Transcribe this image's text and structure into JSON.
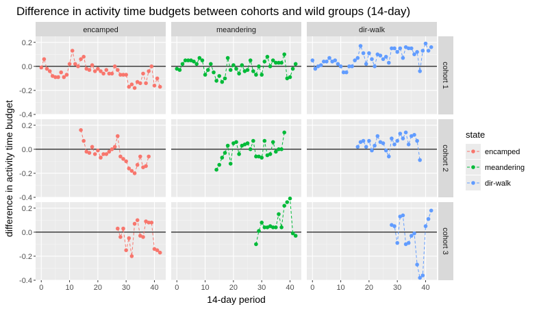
{
  "chart_data": {
    "type": "scatter",
    "title": "Difference in activity time budgets between cohorts and wild groups (14-day)",
    "xlabel": "14-day period",
    "ylabel": "difference in activity time budget",
    "xlim": [
      -2,
      44
    ],
    "ylim": [
      -0.4,
      0.25
    ],
    "xticks": [
      0,
      10,
      20,
      30,
      40
    ],
    "yticks": [
      -0.4,
      -0.2,
      0.0,
      0.2
    ],
    "ytick_labels": [
      "-0.4",
      "-0.2",
      "0.0",
      "0.2"
    ],
    "reference_line": 0,
    "grid": true,
    "legend": {
      "title": "state",
      "position": "right",
      "entries": [
        "encamped",
        "meandering",
        "dir-walk"
      ]
    },
    "colors": {
      "encamped": "#F8766D",
      "meandering": "#00BA38",
      "dir-walk": "#619CFF"
    },
    "columns": [
      "encamped",
      "meandering",
      "dir-walk"
    ],
    "rows": [
      "cohort 1",
      "cohort 2",
      "cohort 3"
    ],
    "panels": [
      {
        "row": "cohort 1",
        "state": "encamped",
        "x": [
          0,
          1,
          2,
          3,
          4,
          5,
          6,
          7,
          8,
          9,
          10,
          11,
          12,
          13,
          14,
          15,
          16,
          17,
          18,
          19,
          20,
          21,
          22,
          23,
          24,
          25,
          26,
          27,
          28,
          29,
          30,
          31,
          32,
          33,
          34,
          35,
          36,
          37,
          38,
          39,
          40,
          41,
          42
        ],
        "y": [
          -0.01,
          0.06,
          -0.02,
          -0.04,
          -0.08,
          -0.09,
          -0.09,
          -0.05,
          -0.09,
          -0.07,
          0.02,
          0.13,
          0.02,
          0.0,
          0.06,
          0.08,
          -0.02,
          -0.03,
          0.01,
          -0.04,
          -0.02,
          -0.04,
          -0.06,
          -0.03,
          -0.06,
          -0.06,
          0.0,
          -0.03,
          -0.07,
          -0.07,
          -0.07,
          -0.17,
          -0.15,
          -0.18,
          -0.13,
          -0.14,
          -0.06,
          -0.14,
          -0.04,
          0.0,
          -0.16,
          -0.1,
          -0.17
        ]
      },
      {
        "row": "cohort 1",
        "state": "meandering",
        "x": [
          0,
          1,
          2,
          3,
          4,
          5,
          6,
          7,
          8,
          9,
          10,
          11,
          12,
          13,
          14,
          15,
          16,
          17,
          18,
          19,
          20,
          21,
          22,
          23,
          24,
          25,
          26,
          27,
          28,
          29,
          30,
          31,
          32,
          33,
          34,
          35,
          36,
          37,
          38,
          39,
          40,
          41,
          42
        ],
        "y": [
          -0.02,
          -0.03,
          0.02,
          0.05,
          0.05,
          0.05,
          0.04,
          0.02,
          0.07,
          0.05,
          -0.07,
          -0.03,
          0.02,
          -0.05,
          -0.12,
          -0.08,
          -0.13,
          -0.1,
          0.07,
          -0.03,
          0.01,
          -0.02,
          -0.06,
          0.01,
          -0.04,
          -0.03,
          0.05,
          -0.04,
          -0.07,
          0.0,
          -0.07,
          0.04,
          0.08,
          0.0,
          0.05,
          0.03,
          0.03,
          0.03,
          0.1,
          -0.1,
          -0.09,
          -0.02,
          0.02
        ]
      },
      {
        "row": "cohort 1",
        "state": "dir-walk",
        "x": [
          0,
          1,
          2,
          3,
          4,
          5,
          6,
          7,
          8,
          9,
          10,
          11,
          12,
          13,
          14,
          15,
          16,
          17,
          18,
          19,
          20,
          21,
          22,
          23,
          24,
          25,
          26,
          27,
          28,
          29,
          30,
          31,
          32,
          33,
          34,
          35,
          36,
          37,
          38,
          39,
          40,
          41,
          42
        ],
        "y": [
          0.05,
          -0.02,
          0.0,
          0.01,
          0.04,
          0.04,
          0.07,
          0.04,
          0.05,
          0.02,
          0.0,
          -0.05,
          -0.05,
          0.0,
          0.0,
          0.05,
          0.07,
          0.17,
          0.11,
          0.02,
          0.11,
          0.06,
          0.0,
          0.1,
          0.09,
          0.06,
          0.08,
          0.03,
          0.15,
          0.15,
          0.12,
          0.15,
          0.07,
          0.16,
          0.15,
          0.15,
          0.1,
          0.12,
          -0.04,
          0.13,
          0.19,
          0.13,
          0.16
        ]
      },
      {
        "row": "cohort 2",
        "state": "encamped",
        "x": [
          14,
          15,
          16,
          17,
          18,
          19,
          20,
          21,
          22,
          23,
          24,
          25,
          26,
          27,
          28,
          29,
          30,
          31,
          32,
          33,
          34,
          35,
          36,
          37,
          38
        ],
        "y": [
          0.16,
          0.07,
          -0.02,
          -0.03,
          0.02,
          -0.04,
          -0.01,
          -0.07,
          -0.04,
          -0.04,
          -0.02,
          0.0,
          0.02,
          0.11,
          -0.06,
          -0.08,
          -0.1,
          -0.16,
          -0.18,
          -0.2,
          -0.13,
          -0.06,
          -0.15,
          -0.14,
          -0.06
        ]
      },
      {
        "row": "cohort 2",
        "state": "meandering",
        "x": [
          14,
          15,
          16,
          17,
          18,
          19,
          20,
          21,
          22,
          23,
          24,
          25,
          26,
          27,
          28,
          29,
          30,
          31,
          32,
          33,
          34,
          35,
          36,
          37,
          38
        ],
        "y": [
          -0.17,
          -0.13,
          -0.07,
          -0.03,
          0.03,
          -0.12,
          0.05,
          0.06,
          -0.04,
          0.03,
          0.04,
          0.05,
          0.0,
          0.07,
          -0.06,
          -0.06,
          -0.07,
          0.07,
          -0.05,
          -0.04,
          0.06,
          -0.02,
          0.0,
          0.0,
          0.14
        ]
      },
      {
        "row": "cohort 2",
        "state": "dir-walk",
        "x": [
          16,
          17,
          18,
          19,
          20,
          21,
          22,
          23,
          24,
          25,
          26,
          27,
          28,
          29,
          30,
          31,
          32,
          33,
          34,
          35,
          36,
          37,
          38
        ],
        "y": [
          0.02,
          0.06,
          0.07,
          0.02,
          0.07,
          -0.01,
          0.03,
          0.11,
          0.06,
          0.05,
          -0.01,
          -0.06,
          0.09,
          0.04,
          0.07,
          0.13,
          0.09,
          0.14,
          0.04,
          0.11,
          0.12,
          0.07,
          -0.09
        ]
      },
      {
        "row": "cohort 3",
        "state": "encamped",
        "x": [
          27,
          28,
          29,
          30,
          31,
          32,
          33,
          34,
          35,
          36,
          37,
          38,
          39,
          40,
          41,
          42
        ],
        "y": [
          0.03,
          -0.04,
          0.03,
          -0.15,
          -0.05,
          -0.2,
          0.07,
          0.1,
          -0.03,
          -0.04,
          0.09,
          0.08,
          0.08,
          -0.14,
          -0.15,
          -0.17
        ]
      },
      {
        "row": "cohort 3",
        "state": "meandering",
        "x": [
          28,
          29,
          30,
          31,
          32,
          33,
          34,
          35,
          36,
          37,
          38,
          39,
          40,
          41,
          42
        ],
        "y": [
          -0.1,
          0.01,
          0.08,
          0.04,
          0.04,
          0.05,
          0.04,
          0.04,
          0.15,
          0.04,
          0.22,
          0.25,
          0.28,
          -0.01,
          -0.03
        ]
      },
      {
        "row": "cohort 3",
        "state": "dir-walk",
        "x": [
          28,
          29,
          30,
          31,
          32,
          33,
          34,
          35,
          36,
          37,
          38,
          39,
          40,
          41,
          42
        ],
        "y": [
          0.06,
          0.05,
          -0.09,
          0.13,
          0.14,
          -0.1,
          -0.09,
          -0.03,
          -0.01,
          -0.27,
          -0.38,
          -0.36,
          0.05,
          0.11,
          0.18
        ]
      }
    ]
  }
}
